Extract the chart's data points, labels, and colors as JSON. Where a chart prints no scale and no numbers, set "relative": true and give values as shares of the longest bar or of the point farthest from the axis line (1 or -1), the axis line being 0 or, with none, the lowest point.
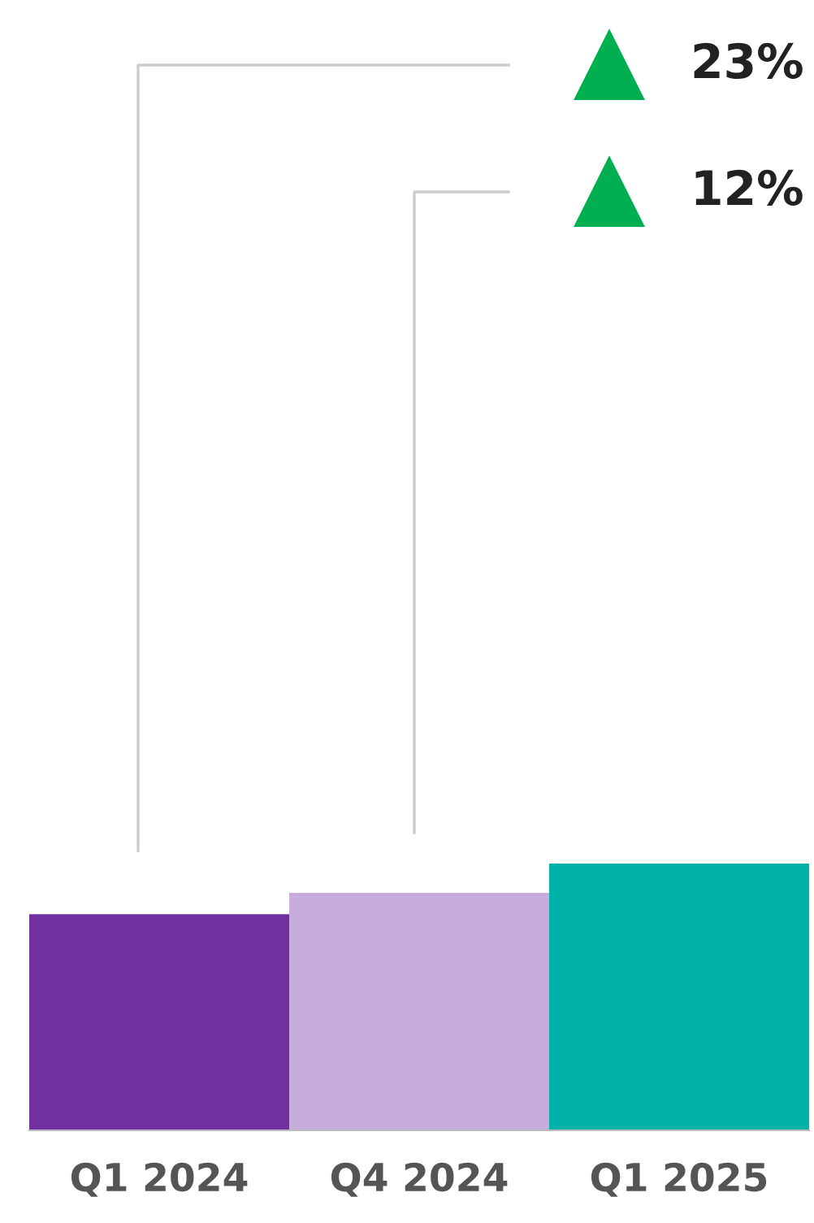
{
  "chart_data": {
    "type": "bar",
    "relative": true,
    "categories": [
      "Q1 2024",
      "Q4 2024",
      "Q1 2025"
    ],
    "values": [
      0.81,
      0.89,
      1
    ],
    "colors": [
      "#7030a0",
      "#c8acdc",
      "#00b2aa"
    ],
    "annotations": [
      "23%",
      "12%"
    ],
    "grid": false,
    "legend": false
  }
}
